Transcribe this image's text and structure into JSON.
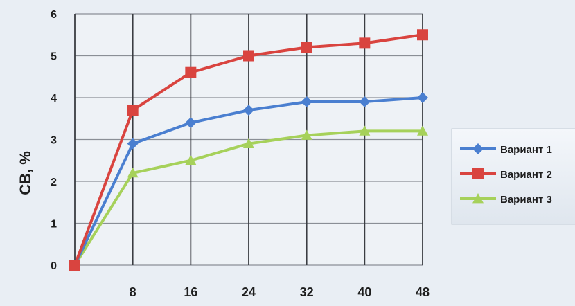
{
  "chart_data": {
    "type": "line",
    "title": "",
    "xlabel": "",
    "ylabel": "СВ, %",
    "x": [
      0,
      8,
      16,
      24,
      32,
      40,
      48
    ],
    "x_ticks": [
      "8",
      "16",
      "24",
      "32",
      "40",
      "48"
    ],
    "ylim": [
      0,
      6
    ],
    "y_ticks": [
      "0",
      "1",
      "2",
      "3",
      "4",
      "5",
      "6"
    ],
    "grid": true,
    "legend_position": "right",
    "series": [
      {
        "name": "Вариант 1",
        "color": "#4a7fd0",
        "marker": "diamond",
        "values": [
          0,
          2.9,
          3.4,
          3.7,
          3.9,
          3.9,
          4.0
        ]
      },
      {
        "name": "Вариант 2",
        "color": "#d9443f",
        "marker": "square",
        "values": [
          0,
          3.7,
          4.6,
          5.0,
          5.2,
          5.3,
          5.5
        ]
      },
      {
        "name": "Вариант 3",
        "color": "#a6d15a",
        "marker": "triangle",
        "values": [
          0,
          2.2,
          2.5,
          2.9,
          3.1,
          3.2,
          3.2
        ]
      }
    ]
  }
}
